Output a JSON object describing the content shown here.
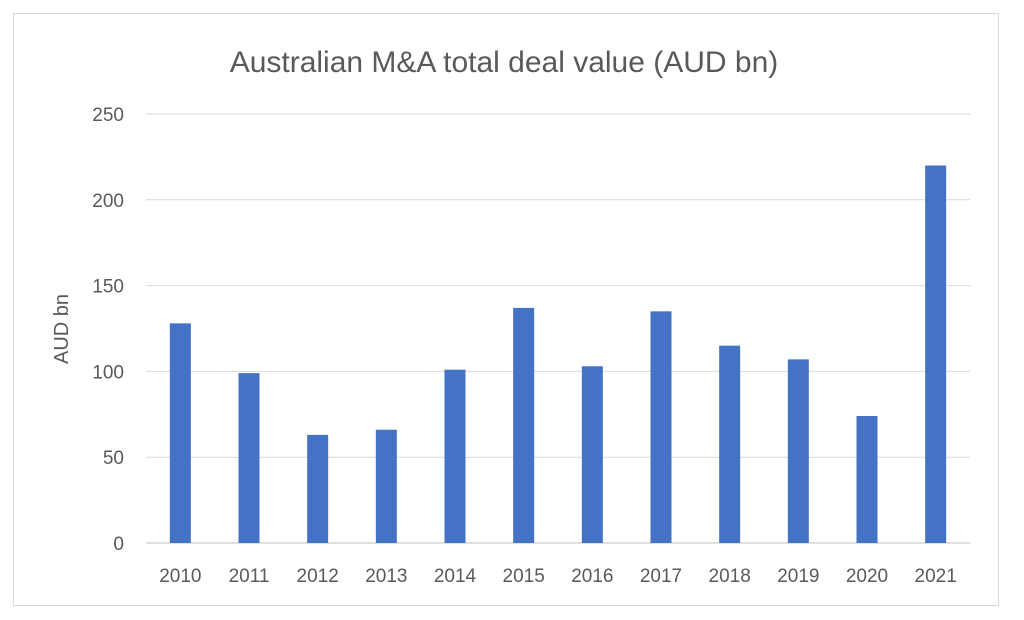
{
  "chart_data": {
    "type": "bar",
    "title": "Australian M&A total deal value (AUD bn)",
    "xlabel": "",
    "ylabel": "AUD bn",
    "categories": [
      "2010",
      "2011",
      "2012",
      "2013",
      "2014",
      "2015",
      "2016",
      "2017",
      "2018",
      "2019",
      "2020",
      "2021"
    ],
    "values": [
      128,
      99,
      63,
      66,
      101,
      137,
      103,
      135,
      115,
      107,
      74,
      220
    ],
    "ylim": [
      0,
      250
    ],
    "yticks": [
      "0",
      "50",
      "100",
      "150",
      "200",
      "250"
    ],
    "grid": true,
    "legend": "none",
    "bar_color": "#4472c4"
  }
}
